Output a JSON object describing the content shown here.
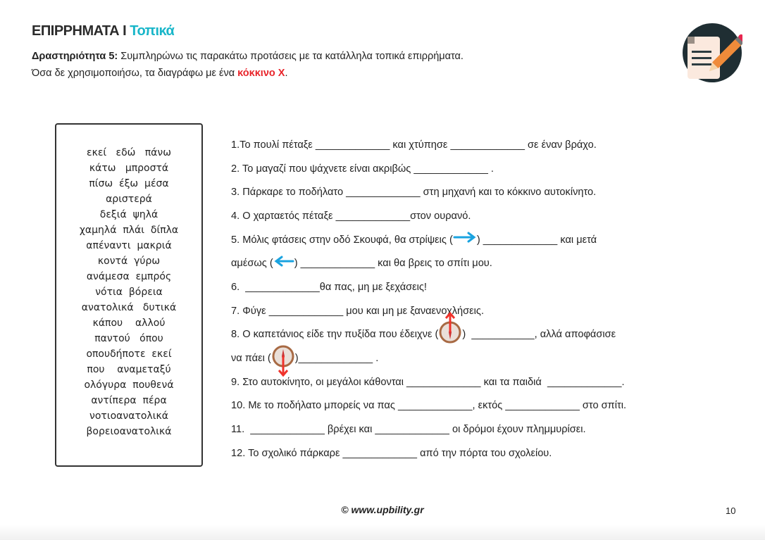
{
  "header": {
    "title": "ΕΠΙΡΡΗΜΑΤΑ",
    "separator": "I",
    "subtitle": "Τοπικά",
    "logo_icon": "document-pencil-icon"
  },
  "instructions": {
    "label": "Δραστηριότητα 5:",
    "line1": " Συμπληρώνω τις παρακάτω προτάσεις με τα κατάλληλα τοπικά επιρρήματα.",
    "line2": "Όσα δε χρησιμοποιήσω, τα διαγράφω με ένα ",
    "highlight": "κόκκινο Χ",
    "end": "."
  },
  "word_bank": [
    "εκεί   εδώ   πάνω",
    "κάτω   μπροστά",
    "πίσω  έξω  μέσα",
    "αριστερά",
    "δεξιά  ψηλά",
    "χαμηλά  πλάι  δίπλα",
    "απέναντι  μακριά",
    "κοντά  γύρω",
    "ανάμεσα  εμπρός",
    "νότια  βόρεια",
    "ανατολικά   δυτικά",
    "κάπου    αλλού",
    "παντού   όπου",
    "οπουδήποτε  εκεί",
    "που    αναμεταξύ",
    "ολόγυρα  πουθενά",
    "αντίπερα  πέρα",
    "νοτιοανατολικά",
    "βορειοανατολικά"
  ],
  "sentences": [
    [
      {
        "t": "1.Το πουλί πέταξε _____________ και χτύπησε _____________ σε έναν βράχο."
      }
    ],
    [
      {
        "t": "2. Το μαγαζί που ψάχνετε είναι ακριβώς _____________ ."
      }
    ],
    [
      {
        "t": "3. Πάρκαρε το ποδήλατο _____________ στη μηχανή και το κόκκινο αυτοκίνητο."
      }
    ],
    [
      {
        "t": "4. Ο χαρταετός πέταξε _____________στον ουρανό."
      }
    ],
    [
      {
        "t": "5. Μόλις φτάσεις στην οδό Σκουφά, θα στρίψεις ("
      },
      {
        "icon": "arrow-right-icon"
      },
      {
        "t": ") _____________ και μετά"
      }
    ],
    [
      {
        "t": "αμέσως ("
      },
      {
        "icon": "arrow-left-icon"
      },
      {
        "t": ") _____________ και θα βρεις το σπίτι μου."
      }
    ],
    [
      {
        "t": "6.  _____________θα πας, μη με ξεχάσεις!"
      }
    ],
    [
      {
        "t": "7. Φύγε _____________ μου και μη με ξαναενοχλήσεις."
      }
    ],
    [
      {
        "t": "8. Ο καπετάνιος είδε την πυξίδα που έδειχνε ("
      },
      {
        "icon": "compass-north-icon"
      },
      {
        "t": ")  ___________, αλλά αποφάσισε"
      }
    ],
    [
      {
        "t": "να πάει ("
      },
      {
        "icon": "compass-south-icon"
      },
      {
        "t": ")_____________ ."
      }
    ],
    [
      {
        "t": "9. Στο αυτοκίνητο, οι μεγάλοι κάθονται _____________ και τα παιδιά  _____________."
      }
    ],
    [
      {
        "t": "10. Με το ποδήλατο μπορείς να πας _____________, εκτός _____________ στο σπίτι."
      }
    ],
    [
      {
        "t": "11.  _____________ βρέχει και _____________ οι δρόμοι έχουν πλημμυρίσει."
      }
    ],
    [
      {
        "t": "12. Το σχολικό πάρκαρε _____________ από την πόρτα του σχολείου."
      }
    ]
  ],
  "footer": {
    "copyright": "©  www.upbility.gr",
    "page": "10"
  },
  "colors": {
    "accent": "#19b6c9",
    "red": "#e8242a",
    "arrow": "#1aa3e0"
  }
}
